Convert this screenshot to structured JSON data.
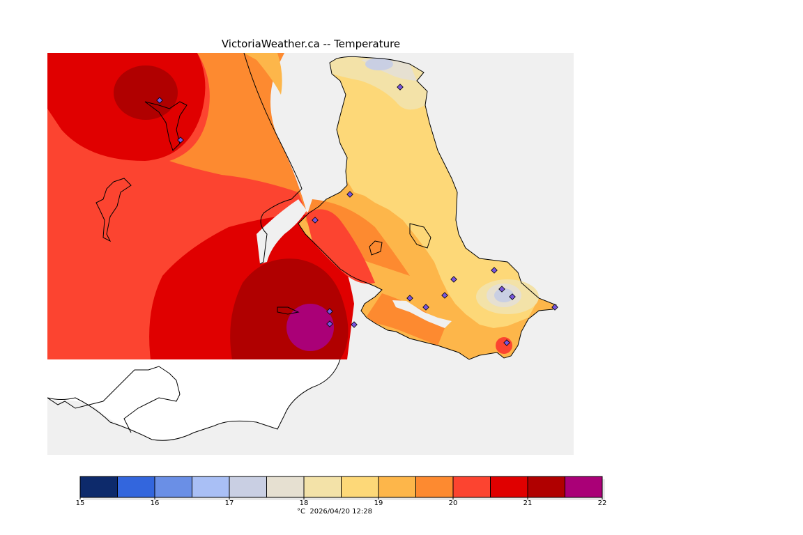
{
  "title": "VictoriaWeather.ca -- Temperature",
  "legend": {
    "ticks": [
      "15",
      "16",
      "17",
      "18",
      "19",
      "20",
      "21",
      "22"
    ],
    "colors": [
      "#0d2a6b",
      "#3366dd",
      "#6a8fe6",
      "#a9bff5",
      "#c9cfe3",
      "#e6e0d1",
      "#f3e2a8",
      "#fdd878",
      "#fdb64a",
      "#fd8a30",
      "#fc4430",
      "#e00000",
      "#b00000",
      "#aa0077"
    ],
    "caption": "°C  2026/04/20 12:28"
  },
  "map": {
    "background": "#f0f0f0",
    "land_white": "#ffffff",
    "station_color": "#7755dd"
  }
}
